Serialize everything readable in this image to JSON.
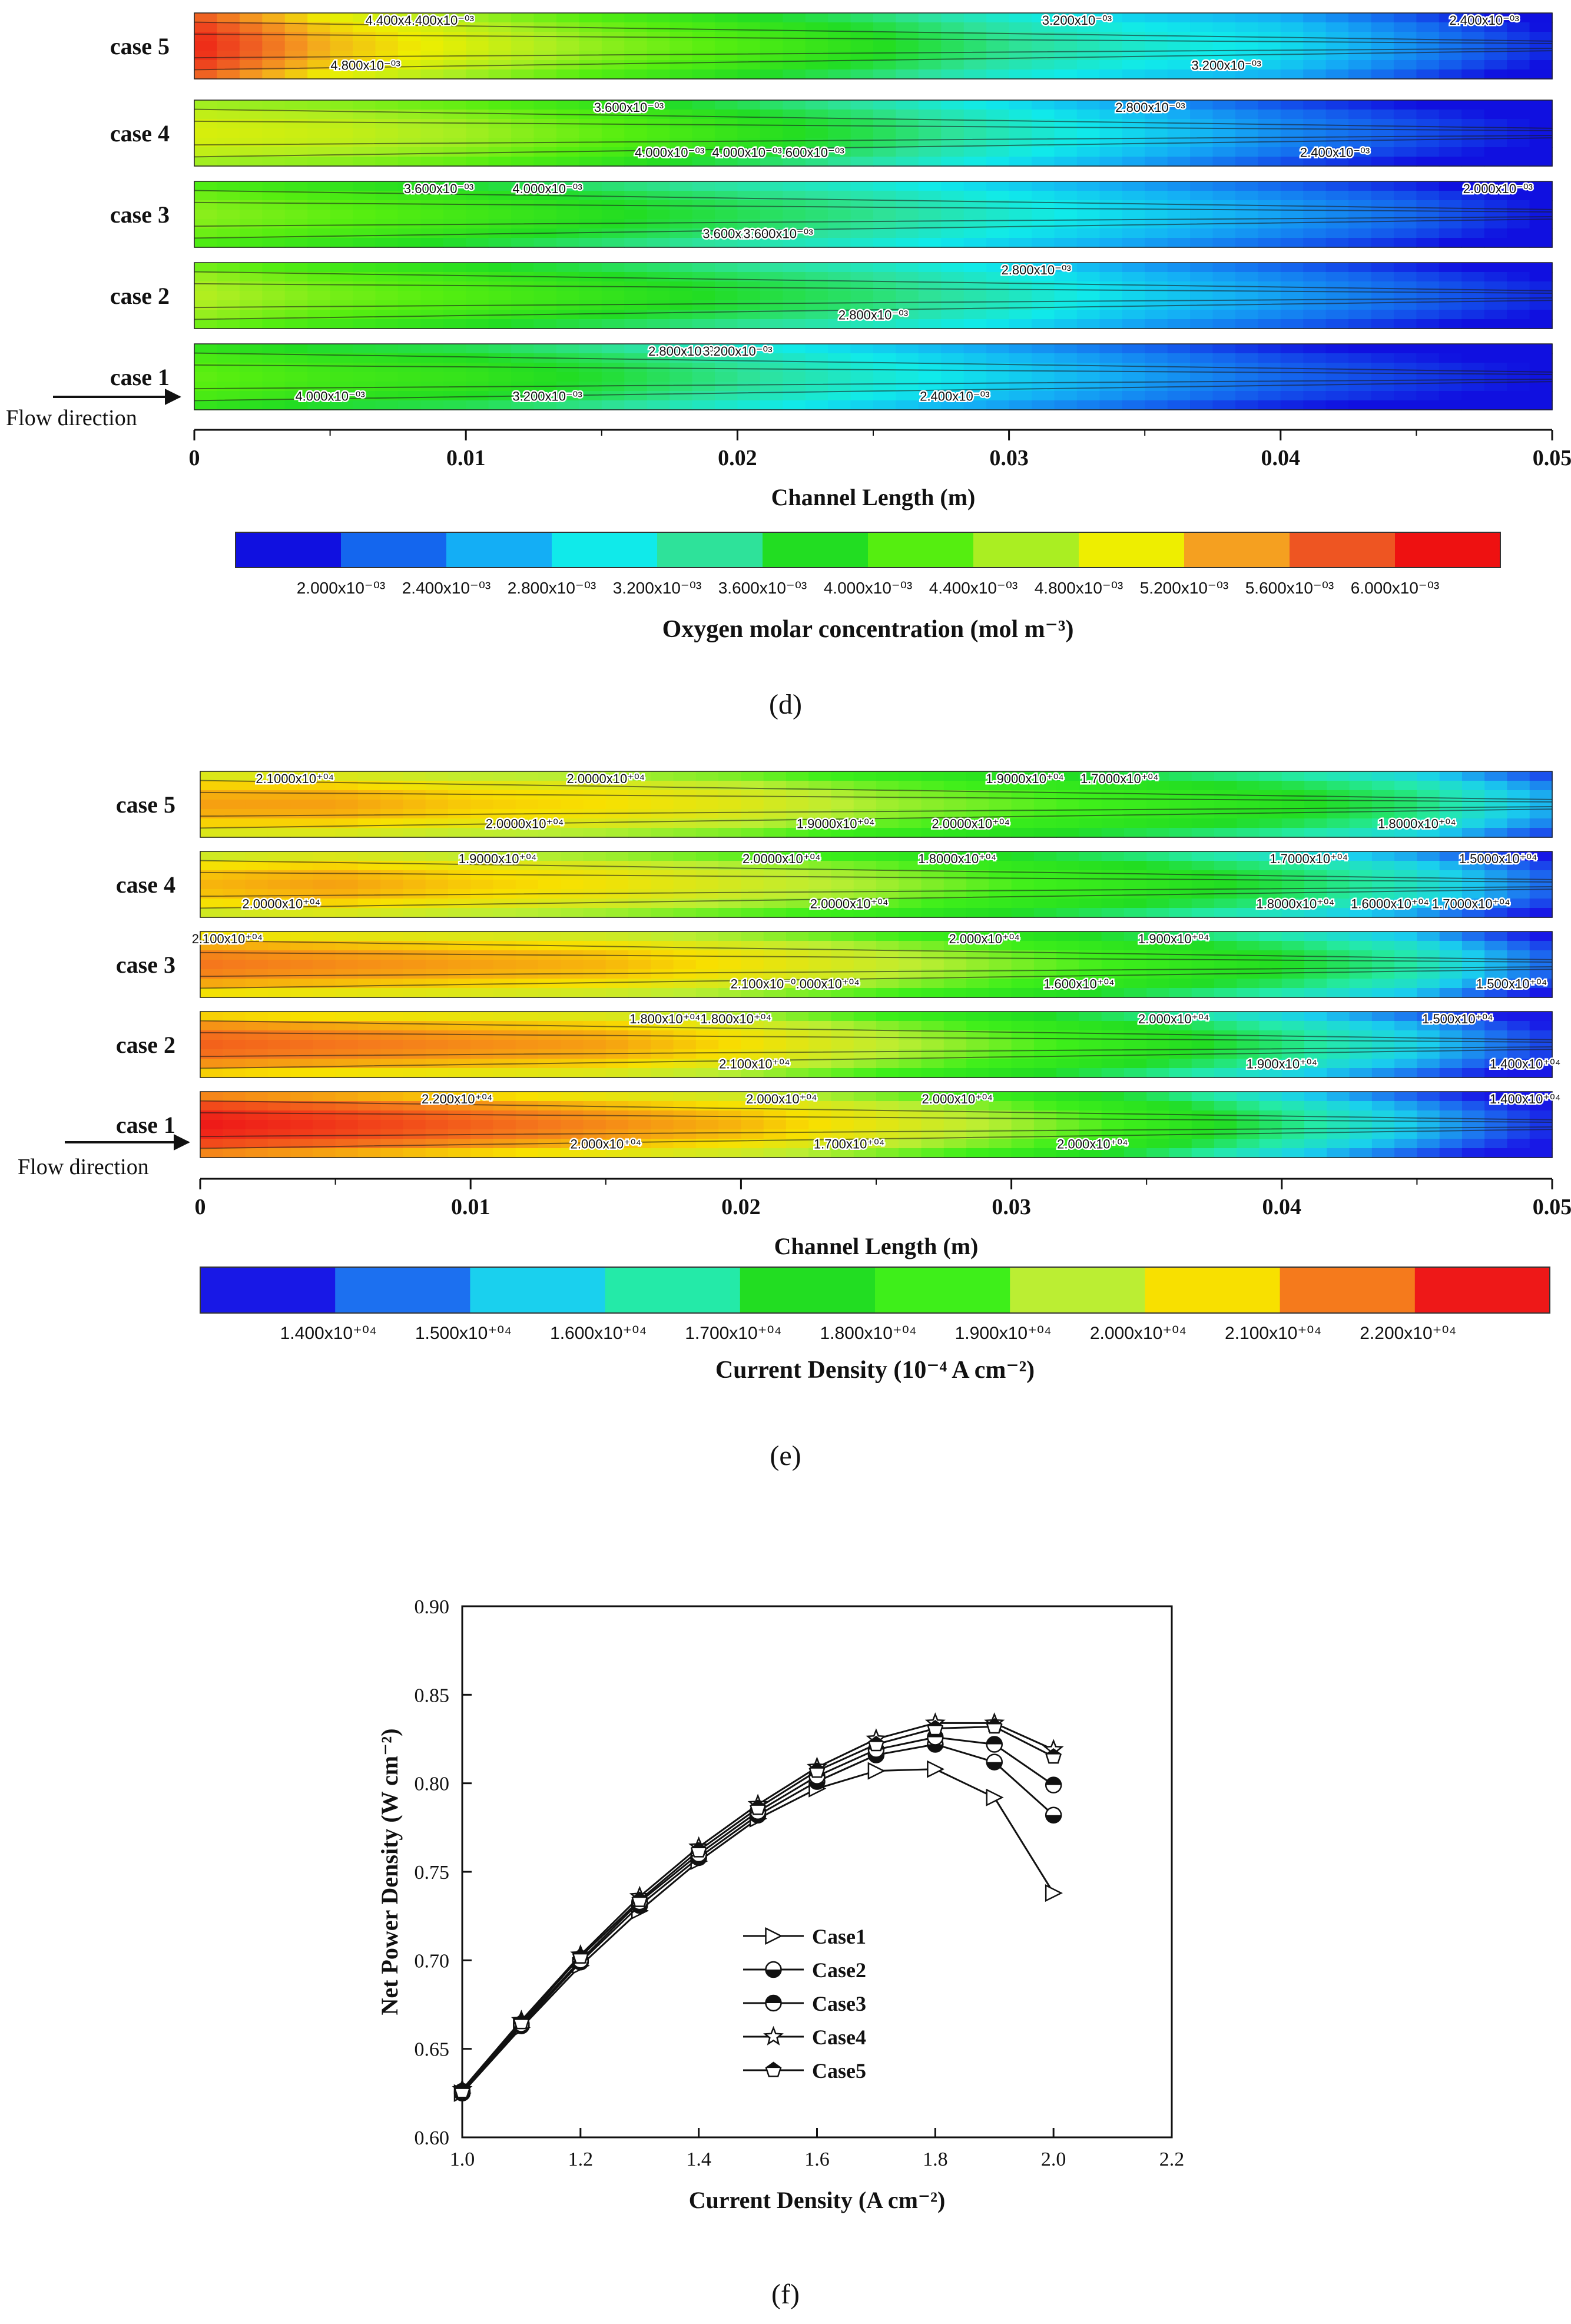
{
  "colors": {
    "oxygen_scale": [
      "#1010e0",
      "#1466ee",
      "#14aef5",
      "#10eaea",
      "#2ee29a",
      "#22dd22",
      "#55ee10",
      "#aaee22",
      "#eeee00",
      "#f5a020",
      "#ee5522",
      "#ee1111"
    ],
    "current_scale": [
      "#1818e6",
      "#1c70f0",
      "#1ad0ee",
      "#24eaa8",
      "#22dd22",
      "#3eef1a",
      "#bbee33",
      "#f8e000",
      "#f57a1c",
      "#ee1818"
    ]
  },
  "chart_data": [
    {
      "type": "heatmap",
      "panel_label": "(d)",
      "xlabel": "Channel Length (m)",
      "xlim": [
        0,
        0.05
      ],
      "xticks": [
        "0",
        "0.01",
        "0.02",
        "0.03",
        "0.04",
        "0.05"
      ],
      "flow_label": "Flow direction",
      "rows": [
        "case 5",
        "case 4",
        "case 3",
        "case 2",
        "case 1"
      ],
      "colorbar_title": "Oxygen molar concentration (mol m⁻³)",
      "colorbar_ticks": [
        "2.000x10⁻⁰³",
        "2.400x10⁻⁰³",
        "2.800x10⁻⁰³",
        "3.200x10⁻⁰³",
        "3.600x10⁻⁰³",
        "4.000x10⁻⁰³",
        "4.400x10⁻⁰³",
        "4.800x10⁻⁰³",
        "5.200x10⁻⁰³",
        "5.600x10⁻⁰³",
        "6.000x10⁻⁰³"
      ],
      "row_profiles": [
        [
          6.2,
          5.4,
          5.0,
          4.6,
          4.3,
          4.0,
          3.6,
          3.3,
          3.1,
          2.6,
          2.1
        ],
        [
          5.0,
          4.9,
          4.7,
          4.4,
          4.1,
          3.8,
          3.4,
          3.0,
          2.6,
          2.3,
          2.0
        ],
        [
          4.6,
          4.4,
          4.2,
          4.0,
          3.8,
          3.6,
          3.3,
          3.0,
          2.7,
          2.4,
          2.0
        ],
        [
          4.8,
          4.5,
          4.3,
          4.1,
          3.9,
          3.7,
          3.4,
          3.0,
          2.7,
          2.4,
          2.1
        ],
        [
          4.4,
          4.2,
          4.1,
          3.9,
          3.6,
          3.3,
          3.0,
          2.7,
          2.4,
          2.2,
          2.0
        ]
      ],
      "contour_labels": [
        {
          "row": 0,
          "x": 0.0083,
          "text": "4.400x4.400x10⁻⁰³"
        },
        {
          "row": 0,
          "x": 0.0063,
          "text": "4.800x10⁻⁰³"
        },
        {
          "row": 0,
          "x": 0.0325,
          "text": "3.200x10⁻⁰³"
        },
        {
          "row": 0,
          "x": 0.038,
          "text": "3.200x10⁻⁰³"
        },
        {
          "row": 0,
          "x": 0.0475,
          "text": "2.400x10⁻⁰³"
        },
        {
          "row": 1,
          "x": 0.0175,
          "text": "4.000x10⁻⁰³"
        },
        {
          "row": 1,
          "x": 0.016,
          "text": "3.600x10⁻⁰³"
        },
        {
          "row": 1,
          "x": 0.0215,
          "text": "4.000x10⁻⁰³.600x10⁻⁰³"
        },
        {
          "row": 1,
          "x": 0.0352,
          "text": "2.800x10⁻⁰³"
        },
        {
          "row": 1,
          "x": 0.042,
          "text": "2.400x10⁻⁰³"
        },
        {
          "row": 2,
          "x": 0.013,
          "text": "4.000x10⁻⁰³"
        },
        {
          "row": 2,
          "x": 0.02,
          "text": "3.600x10⁻⁰³"
        },
        {
          "row": 2,
          "x": 0.009,
          "text": "3.600x10⁻⁰³"
        },
        {
          "row": 2,
          "x": 0.0215,
          "text": "3.600x10⁻⁰³"
        },
        {
          "row": 2,
          "x": 0.048,
          "text": "2.000x10⁻⁰³"
        },
        {
          "row": 3,
          "x": 0.025,
          "text": "2.800x10⁻⁰³"
        },
        {
          "row": 3,
          "x": 0.031,
          "text": "2.800x10⁻⁰³"
        },
        {
          "row": 4,
          "x": 0.005,
          "text": "4.000x10⁻⁰³"
        },
        {
          "row": 4,
          "x": 0.018,
          "text": "2.800x10⁻⁰³"
        },
        {
          "row": 4,
          "x": 0.013,
          "text": "3.200x10⁻⁰³"
        },
        {
          "row": 4,
          "x": 0.02,
          "text": "3.200x10⁻⁰³"
        },
        {
          "row": 4,
          "x": 0.028,
          "text": "2.400x10⁻⁰³"
        }
      ]
    },
    {
      "type": "heatmap",
      "panel_label": "(e)",
      "xlabel": "Channel Length (m)",
      "xlim": [
        0,
        0.05
      ],
      "xticks": [
        "0",
        "0.01",
        "0.02",
        "0.03",
        "0.04",
        "0.05"
      ],
      "flow_label": "Flow direction",
      "rows": [
        "case 5",
        "case 4",
        "case 3",
        "case 2",
        "case 1"
      ],
      "colorbar_title": "Current  Density (10⁻⁴ A cm⁻²)",
      "colorbar_ticks": [
        "1.400x10⁺⁰⁴",
        "1.500x10⁺⁰⁴",
        "1.600x10⁺⁰⁴",
        "1.700x10⁺⁰⁴",
        "1.800x10⁺⁰⁴",
        "1.900x10⁺⁰⁴",
        "2.000x10⁺⁰⁴",
        "2.100x10⁺⁰⁴",
        "2.200x10⁺⁰⁴"
      ],
      "row_profiles": [
        [
          2.12,
          2.12,
          2.08,
          2.06,
          2.02,
          1.95,
          1.9,
          1.85,
          1.8,
          1.72,
          1.55
        ],
        [
          2.1,
          2.12,
          2.08,
          2.05,
          2.0,
          1.95,
          1.88,
          1.82,
          1.75,
          1.65,
          1.48
        ],
        [
          2.16,
          2.14,
          2.12,
          2.1,
          2.05,
          1.99,
          1.92,
          1.85,
          1.78,
          1.68,
          1.48
        ],
        [
          2.18,
          2.16,
          2.14,
          2.12,
          2.06,
          1.98,
          1.9,
          1.82,
          1.72,
          1.6,
          1.44
        ],
        [
          2.25,
          2.22,
          2.18,
          2.14,
          2.1,
          2.03,
          1.95,
          1.85,
          1.72,
          1.58,
          1.42
        ]
      ],
      "contour_labels": [
        {
          "row": 0,
          "x": 0.0035,
          "text": "2.1000x10⁺⁰⁴"
        },
        {
          "row": 0,
          "x": 0.012,
          "text": "2.0000x10⁺⁰⁴"
        },
        {
          "row": 0,
          "x": 0.015,
          "text": "2.0000x10⁺⁰⁴"
        },
        {
          "row": 0,
          "x": 0.0235,
          "text": "1.9000x10⁺⁰⁴"
        },
        {
          "row": 0,
          "x": 0.0305,
          "text": "1.9000x10⁺⁰⁴"
        },
        {
          "row": 0,
          "x": 0.0285,
          "text": "2.0000x10⁺⁰⁴"
        },
        {
          "row": 0,
          "x": 0.034,
          "text": "1.7000x10⁺⁰⁴"
        },
        {
          "row": 0,
          "x": 0.045,
          "text": "1.8000x10⁺⁰⁴"
        },
        {
          "row": 1,
          "x": 0.011,
          "text": "1.9000x10⁺⁰⁴"
        },
        {
          "row": 1,
          "x": 0.003,
          "text": "2.0000x10⁺⁰⁴"
        },
        {
          "row": 1,
          "x": 0.0215,
          "text": "2.0000x10⁺⁰⁴"
        },
        {
          "row": 1,
          "x": 0.024,
          "text": "2.0000x10⁺⁰⁴"
        },
        {
          "row": 1,
          "x": 0.028,
          "text": "1.8000x10⁺⁰⁴"
        },
        {
          "row": 1,
          "x": 0.0405,
          "text": "1.8000x10⁺⁰⁴"
        },
        {
          "row": 1,
          "x": 0.041,
          "text": "1.7000x10⁺⁰⁴"
        },
        {
          "row": 1,
          "x": 0.044,
          "text": "1.6000x10⁺⁰⁴"
        },
        {
          "row": 1,
          "x": 0.048,
          "text": "1.5000x10⁺⁰⁴"
        },
        {
          "row": 1,
          "x": 0.047,
          "text": "1.7000x10⁺⁰⁴"
        },
        {
          "row": 2,
          "x": 0.001,
          "text": "2.100x10⁺⁰⁴"
        },
        {
          "row": 2,
          "x": 0.022,
          "text": "2.100x10⁻⁰.000x10⁺⁰⁴"
        },
        {
          "row": 2,
          "x": 0.029,
          "text": "2.000x10⁺⁰⁴"
        },
        {
          "row": 2,
          "x": 0.0325,
          "text": "1.600x10⁺⁰⁴"
        },
        {
          "row": 2,
          "x": 0.036,
          "text": "1.900x10⁺⁰⁴"
        },
        {
          "row": 2,
          "x": 0.0485,
          "text": "1.500x10⁺⁰⁴"
        },
        {
          "row": 3,
          "x": 0.0185,
          "text": "1.800x10⁺⁰⁴1.800x10⁺⁰⁴"
        },
        {
          "row": 3,
          "x": 0.0205,
          "text": "2.100x10⁺⁰⁴"
        },
        {
          "row": 3,
          "x": 0.036,
          "text": "2.000x10⁺⁰⁴"
        },
        {
          "row": 3,
          "x": 0.04,
          "text": "1.900x10⁺⁰⁴"
        },
        {
          "row": 3,
          "x": 0.0465,
          "text": "1.500x10⁺⁰⁴"
        },
        {
          "row": 3,
          "x": 0.049,
          "text": "1.400x10⁺⁰⁴"
        },
        {
          "row": 4,
          "x": 0.0095,
          "text": "2.200x10⁺⁰⁴"
        },
        {
          "row": 4,
          "x": 0.015,
          "text": "2.000x10⁺⁰⁴"
        },
        {
          "row": 4,
          "x": 0.0215,
          "text": "2.000x10⁺⁰⁴"
        },
        {
          "row": 4,
          "x": 0.024,
          "text": "1.700x10⁺⁰⁴"
        },
        {
          "row": 4,
          "x": 0.028,
          "text": "2.000x10⁺⁰⁴"
        },
        {
          "row": 4,
          "x": 0.033,
          "text": "2.000x10⁺⁰⁴"
        },
        {
          "row": 4,
          "x": 0.049,
          "text": "1.400x10⁺⁰⁴"
        }
      ]
    },
    {
      "type": "line",
      "panel_label": "(f)",
      "xlabel": "Current Density (A cm⁻²)",
      "ylabel": "Net Power Density (W cm⁻²)",
      "xlim": [
        1.0,
        2.2
      ],
      "ylim": [
        0.6,
        0.9
      ],
      "xticks": [
        1.0,
        1.2,
        1.4,
        1.6,
        1.8,
        2.0,
        2.2
      ],
      "yticks": [
        0.6,
        0.65,
        0.7,
        0.75,
        0.8,
        0.85,
        0.9
      ],
      "x": [
        1.0,
        1.1,
        1.2,
        1.3,
        1.4,
        1.5,
        1.6,
        1.7,
        1.8,
        1.9,
        2.0
      ],
      "series": [
        {
          "name": "Case1",
          "marker": "triangle-right",
          "values": [
            0.625,
            0.662,
            0.697,
            0.728,
            0.756,
            0.78,
            0.797,
            0.807,
            0.808,
            0.792,
            0.738
          ]
        },
        {
          "name": "Case2",
          "marker": "half-circle-bottom",
          "values": [
            0.625,
            0.663,
            0.699,
            0.731,
            0.758,
            0.782,
            0.801,
            0.816,
            0.822,
            0.812,
            0.782
          ]
        },
        {
          "name": "Case3",
          "marker": "half-circle-top",
          "values": [
            0.626,
            0.664,
            0.7,
            0.733,
            0.76,
            0.784,
            0.804,
            0.819,
            0.826,
            0.822,
            0.799
          ]
        },
        {
          "name": "Case4",
          "marker": "star",
          "values": [
            0.627,
            0.666,
            0.703,
            0.736,
            0.764,
            0.788,
            0.809,
            0.825,
            0.834,
            0.834,
            0.819
          ]
        },
        {
          "name": "Case5",
          "marker": "pentagon",
          "values": [
            0.626,
            0.665,
            0.702,
            0.734,
            0.762,
            0.786,
            0.807,
            0.822,
            0.831,
            0.832,
            0.815
          ]
        }
      ]
    }
  ]
}
